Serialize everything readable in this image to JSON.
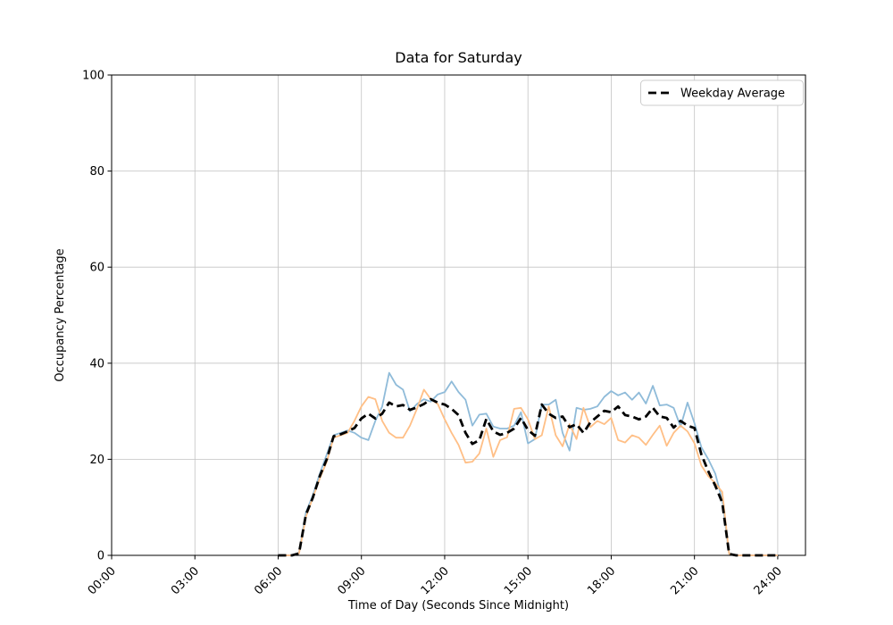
{
  "figure": {
    "background": "#ffffff",
    "frame_color": "#000000",
    "grid_color": "#c3c3c3"
  },
  "chart_data": {
    "type": "line",
    "title": "Data for Saturday",
    "xlabel": "Time of Day (Seconds Since Midnight)",
    "ylabel": "Occupancy Percentage",
    "xlim_hours": [
      0,
      25
    ],
    "ylim": [
      0,
      100
    ],
    "grid": true,
    "x_ticks": {
      "hours": [
        0,
        3,
        6,
        9,
        12,
        15,
        18,
        21,
        24
      ],
      "labels": [
        "00:00",
        "03:00",
        "06:00",
        "09:00",
        "12:00",
        "15:00",
        "18:00",
        "21:00",
        "24:00"
      ]
    },
    "y_ticks": {
      "values": [
        0,
        20,
        40,
        60,
        80,
        100
      ],
      "labels": [
        "0",
        "20",
        "40",
        "60",
        "80",
        "100"
      ]
    },
    "legend": {
      "position": "upper right",
      "entries": [
        {
          "label": "Weekday Average",
          "color": "#000000",
          "style": "dashed"
        }
      ]
    },
    "x_hours": [
      6.0,
      6.25,
      6.5,
      6.75,
      7.0,
      7.25,
      7.5,
      7.75,
      8.0,
      8.25,
      8.5,
      8.75,
      9.0,
      9.25,
      9.5,
      9.75,
      10.0,
      10.25,
      10.5,
      10.75,
      11.0,
      11.25,
      11.5,
      11.75,
      12.0,
      12.25,
      12.5,
      12.75,
      13.0,
      13.25,
      13.5,
      13.75,
      14.0,
      14.25,
      14.5,
      14.75,
      15.0,
      15.25,
      15.5,
      15.75,
      16.0,
      16.25,
      16.5,
      16.75,
      17.0,
      17.25,
      17.5,
      17.75,
      18.0,
      18.25,
      18.5,
      18.75,
      19.0,
      19.25,
      19.5,
      19.75,
      20.0,
      20.25,
      20.5,
      20.75,
      21.0,
      21.25,
      21.5,
      21.75,
      22.0,
      22.25,
      22.5,
      22.75,
      23.0,
      23.25,
      23.5,
      23.75,
      24.0
    ],
    "series": [
      {
        "name": "saturday-line-1",
        "color": "#8fbbd9",
        "width": 1.8,
        "dash": null,
        "in_legend": false,
        "values": [
          0,
          0,
          0,
          0.4,
          9,
          12.5,
          17,
          21,
          25,
          25.5,
          26,
          25.5,
          24.5,
          24,
          28,
          31,
          38,
          35.5,
          34.5,
          30,
          31.5,
          32.5,
          32,
          33.5,
          34,
          36.2,
          34,
          32.4,
          27,
          29.3,
          29.5,
          26.8,
          26.4,
          26.4,
          27,
          29.8,
          23.3,
          24.2,
          31.4,
          31.4,
          32.4,
          25.5,
          21.8,
          30.7,
          30.3,
          30.5,
          31,
          33,
          34.2,
          33.3,
          33.9,
          32.4,
          33.9,
          31.6,
          35.3,
          31.2,
          31.4,
          30.7,
          26.8,
          31.8,
          27.5,
          22.5,
          20,
          17,
          11.5,
          0.3,
          0,
          0,
          0,
          0,
          0,
          0,
          0
        ]
      },
      {
        "name": "saturday-line-2",
        "color": "#ffbf86",
        "width": 1.8,
        "dash": null,
        "in_legend": false,
        "values": [
          0,
          0,
          0,
          0.4,
          8,
          12,
          16,
          19.5,
          24.5,
          25,
          25.5,
          28,
          31,
          33,
          32.5,
          28,
          25.5,
          24.5,
          24.5,
          27,
          30.5,
          34.5,
          32.5,
          31.5,
          28.3,
          25.5,
          23,
          19.3,
          19.5,
          21.2,
          26.4,
          20.5,
          24,
          24.6,
          30.5,
          30.7,
          28.3,
          24.2,
          25,
          31,
          25,
          22.7,
          27.3,
          24.2,
          30.7,
          26.7,
          28,
          27.3,
          28.6,
          24,
          23.5,
          25,
          24.5,
          23,
          25.1,
          27,
          22.8,
          25.5,
          27,
          25.8,
          23.3,
          18.7,
          16.5,
          15,
          13.2,
          0.3,
          0,
          0,
          0,
          0,
          0,
          0,
          0
        ]
      },
      {
        "name": "Weekday Average",
        "color": "#000000",
        "width": 2.8,
        "dash": [
          9,
          5
        ],
        "in_legend": true,
        "values": [
          0,
          0,
          0,
          0.4,
          8.5,
          12,
          16.5,
          20,
          24.8,
          25.2,
          25.8,
          26.5,
          28.5,
          29.5,
          28.5,
          29.5,
          31.8,
          31,
          31.3,
          30.3,
          30.8,
          31.5,
          32.5,
          31.8,
          31.4,
          30.5,
          29.2,
          25.5,
          23.2,
          24,
          28.4,
          25.8,
          25.1,
          25.5,
          26.4,
          28.6,
          26.1,
          24.9,
          31.4,
          29.5,
          28.6,
          28.9,
          26.7,
          27.3,
          25.5,
          27.7,
          28.9,
          30.1,
          29.8,
          31,
          29.2,
          28.9,
          28.3,
          28.9,
          30.7,
          28.9,
          28.6,
          26.6,
          28,
          27,
          26.5,
          21,
          17.5,
          14.5,
          11,
          0.3,
          0,
          0,
          0,
          0,
          0,
          0,
          0
        ]
      }
    ]
  }
}
